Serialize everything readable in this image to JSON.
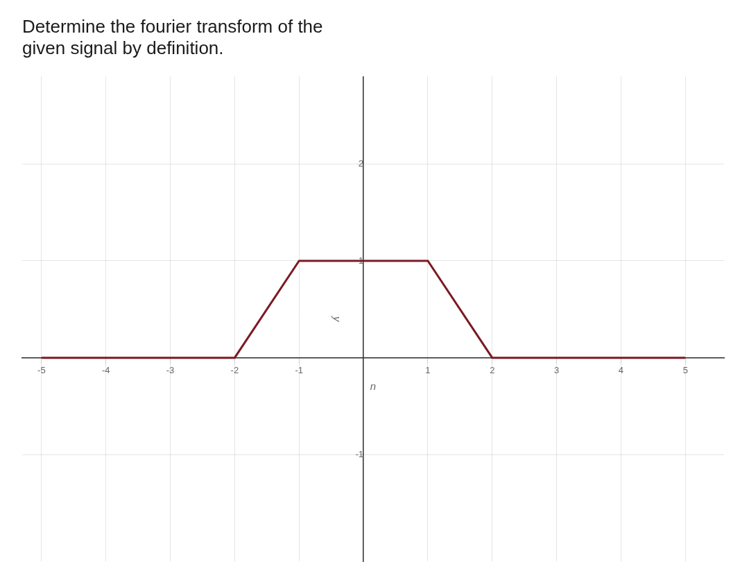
{
  "chart_data": {
    "type": "line",
    "title": [
      "Determine the fourier transform of the",
      "given signal by definition."
    ],
    "xlabel": "n",
    "ylabel": "y",
    "x": [
      -5,
      -2,
      -1,
      1,
      2,
      5
    ],
    "values": [
      0,
      0,
      1,
      1,
      0,
      0
    ],
    "color": "#7B1A24",
    "xlim": [
      -5.3,
      5.6
    ],
    "ylim": [
      -2.1,
      2.9
    ],
    "xticks": [
      -5,
      -4,
      -3,
      -2,
      -1,
      1,
      2,
      3,
      4,
      5
    ],
    "yticks": [
      -1,
      1,
      2
    ],
    "grid": true
  }
}
